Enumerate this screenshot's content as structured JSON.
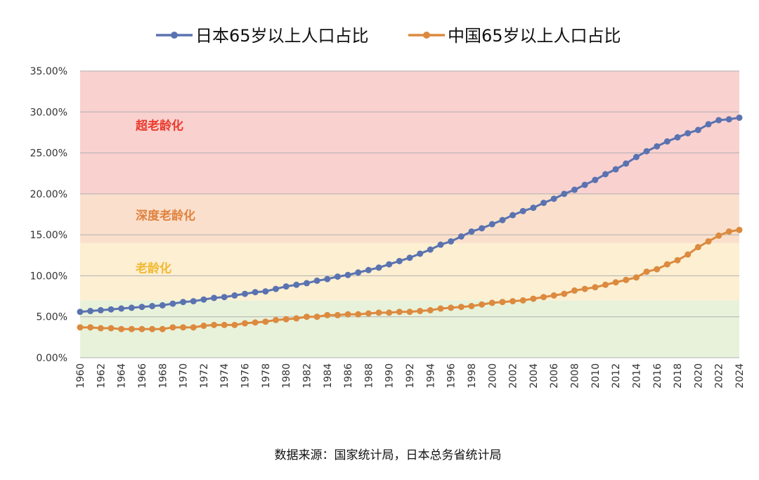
{
  "chart_data": {
    "type": "line",
    "x_start": 1960,
    "x_end": 2024,
    "ylim": [
      0,
      35
    ],
    "y_tick_values": [
      0,
      5,
      10,
      15,
      20,
      25,
      30,
      35
    ],
    "y_tick_labels": [
      "0.00%",
      "5.00%",
      "10.00%",
      "15.00%",
      "20.00%",
      "25.00%",
      "30.00%",
      "35.00%"
    ],
    "x_tick_labels": [
      "1960",
      "1962",
      "1964",
      "1966",
      "1968",
      "1970",
      "1972",
      "1974",
      "1976",
      "1978",
      "1980",
      "1982",
      "1984",
      "1986",
      "1988",
      "1990",
      "1992",
      "1994",
      "1996",
      "1998",
      "2000",
      "2002",
      "2004",
      "2006",
      "2008",
      "2010",
      "2012",
      "2014",
      "2016",
      "2018",
      "2020",
      "2022",
      "2024"
    ],
    "legend_position": "top",
    "zones": [
      {
        "label": "",
        "from": 0,
        "to": 7,
        "color": "#e8f2da"
      },
      {
        "label": "老龄化",
        "from": 7,
        "to": 14,
        "color": "#fcefd2",
        "text_color": "#f2b933"
      },
      {
        "label": "深度老龄化",
        "from": 14,
        "to": 20,
        "color": "#fae0cc",
        "text_color": "#e0823f"
      },
      {
        "label": "超老龄化",
        "from": 20,
        "to": 35,
        "color": "#f9d1cf",
        "text_color": "#ea3a2c"
      }
    ],
    "series": [
      {
        "name": "日本65岁以上人口占比",
        "color": "#5a73b0",
        "values": [
          5.6,
          5.7,
          5.8,
          5.9,
          6.0,
          6.1,
          6.2,
          6.3,
          6.4,
          6.6,
          6.8,
          6.9,
          7.1,
          7.3,
          7.4,
          7.6,
          7.8,
          8.0,
          8.1,
          8.4,
          8.7,
          8.9,
          9.1,
          9.4,
          9.6,
          9.9,
          10.1,
          10.4,
          10.7,
          11.0,
          11.4,
          11.8,
          12.2,
          12.7,
          13.2,
          13.8,
          14.2,
          14.8,
          15.4,
          15.8,
          16.3,
          16.8,
          17.4,
          17.9,
          18.3,
          18.9,
          19.4,
          20.0,
          20.5,
          21.1,
          21.7,
          22.4,
          23.0,
          23.7,
          24.5,
          25.2,
          25.8,
          26.4,
          26.9,
          27.4,
          27.8,
          28.5,
          29.0,
          29.1,
          29.3
        ]
      },
      {
        "name": "中国65岁以上人口占比",
        "color": "#dc8a3f",
        "values": [
          3.7,
          3.7,
          3.6,
          3.6,
          3.5,
          3.5,
          3.5,
          3.5,
          3.5,
          3.7,
          3.7,
          3.7,
          3.9,
          4.0,
          4.0,
          4.0,
          4.2,
          4.3,
          4.4,
          4.6,
          4.7,
          4.8,
          5.0,
          5.0,
          5.2,
          5.2,
          5.3,
          5.3,
          5.4,
          5.5,
          5.5,
          5.6,
          5.6,
          5.7,
          5.8,
          6.0,
          6.1,
          6.2,
          6.3,
          6.5,
          6.7,
          6.8,
          6.9,
          7.0,
          7.2,
          7.4,
          7.6,
          7.8,
          8.2,
          8.4,
          8.6,
          8.9,
          9.2,
          9.5,
          9.8,
          10.5,
          10.8,
          11.4,
          11.9,
          12.6,
          13.5,
          14.2,
          14.9,
          15.4,
          15.6
        ]
      }
    ]
  },
  "source_text": "数据来源：国家统计局，日本总务省统计局"
}
